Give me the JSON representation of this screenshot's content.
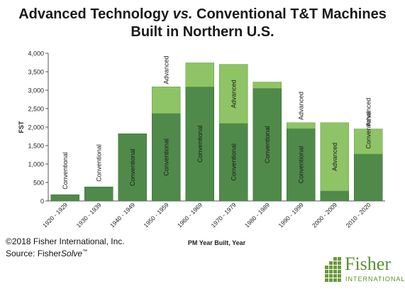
{
  "title_line1": "Advanced Technology vs. Conventional T&T Machines",
  "title_line2": "Built in Northern U.S.",
  "title_prefix": "Advanced Technology ",
  "title_vs": "vs.",
  "title_suffix": " Conventional T&T Machines",
  "copyright": "©2018 Fisher International, Inc.",
  "source_prefix": "Source: Fisher",
  "source_italic": "Solve",
  "source_tm": "™",
  "logo_name": "Fisher",
  "logo_sub": "INTERNATIONAL",
  "colors": {
    "conventional": "#4f8a4a",
    "advanced": "#8ec466",
    "bar_text": "#1a1a1a"
  },
  "chart_data": {
    "type": "bar",
    "stacked": true,
    "xlabel": "PM Year Built, Year",
    "ylabel": "FST",
    "ylim": [
      0,
      4000
    ],
    "yticks": [
      "0",
      "500",
      "1,000",
      "1,500",
      "2,000",
      "2,500",
      "3,000",
      "3,500",
      "4,000"
    ],
    "ytick_values": [
      0,
      500,
      1000,
      1500,
      2000,
      2500,
      3000,
      3500,
      4000
    ],
    "categories": [
      "1920 - 1929",
      "1930 - 1939",
      "1940 - 1949",
      "1950 - 1959",
      "1960 - 1969",
      "1970 - 1979",
      "1980 - 1989",
      "1990 - 1999",
      "2000 - 2009",
      "2010 - 2020"
    ],
    "series": [
      {
        "name": "Conventional",
        "values": [
          170,
          380,
          1820,
          2370,
          3090,
          2100,
          3050,
          1960,
          270,
          1270
        ]
      },
      {
        "name": "Advanced",
        "values": [
          0,
          0,
          0,
          720,
          650,
          1600,
          170,
          160,
          1850,
          680
        ]
      }
    ],
    "bar_labels": {
      "Conventional": [
        "Conventional",
        "Conventional",
        "Conventional",
        "Conventional",
        "Conventional",
        "Conventional",
        "Conventional",
        "Conventional",
        "",
        "Conventional"
      ],
      "Advanced": [
        "",
        "",
        "",
        "Advanced",
        "",
        "Advanced",
        "",
        "Advanced",
        "Advanced",
        "Advanced"
      ]
    },
    "grid": false,
    "legend": "none"
  }
}
